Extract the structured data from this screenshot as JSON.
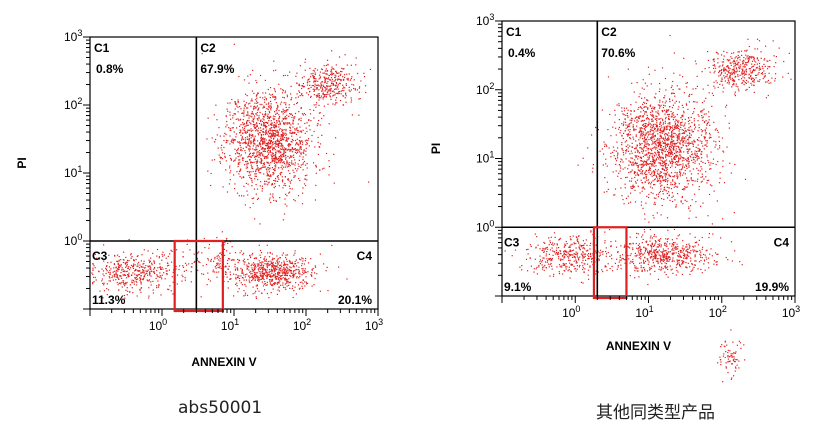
{
  "captions": [
    "abs50001",
    "其他同类型产品"
  ],
  "chart_data": [
    {
      "type": "scatter",
      "title": "",
      "xlabel": "ANNEXIN V",
      "ylabel": "PI",
      "xscale": "log",
      "yscale": "log",
      "xlim": [
        0.1,
        1000
      ],
      "ylim": [
        0.1,
        1000
      ],
      "x_ticks": [
        "10^0",
        "10^1",
        "10^2",
        "10^3"
      ],
      "y_ticks": [
        "10^0",
        "10^1",
        "10^2",
        "10^3"
      ],
      "point_color": "#e02020",
      "gate_x": 3,
      "gate_y": 1,
      "quadrants": [
        {
          "label": "C1",
          "percent": "0.8%"
        },
        {
          "label": "C2",
          "percent": "67.9%"
        },
        {
          "label": "C3",
          "percent": "11.3%"
        },
        {
          "label": "C4",
          "percent": "20.1%"
        }
      ],
      "highlight_box": {
        "x_range": [
          1.5,
          7
        ],
        "y_range": [
          0.1,
          1.0
        ],
        "color": "#e02020"
      },
      "clusters": [
        {
          "cx": 30,
          "cy": 30,
          "n": 1500,
          "sx": 0.3,
          "sy": 0.38
        },
        {
          "cx": 200,
          "cy": 200,
          "n": 350,
          "sx": 0.22,
          "sy": 0.15
        },
        {
          "cx": 35,
          "cy": 0.35,
          "n": 620,
          "sx": 0.28,
          "sy": 0.14
        },
        {
          "cx": 0.4,
          "cy": 0.35,
          "n": 420,
          "sx": 0.3,
          "sy": 0.14
        },
        {
          "cx": 5,
          "cy": 0.5,
          "n": 160,
          "sx": 0.3,
          "sy": 0.2
        }
      ]
    },
    {
      "type": "scatter",
      "title": "",
      "xlabel": "ANNEXIN V",
      "ylabel": "PI",
      "xscale": "log",
      "yscale": "log",
      "xlim": [
        0.1,
        1000
      ],
      "ylim": [
        0.1,
        1000
      ],
      "x_ticks": [
        "10^0",
        "10^1",
        "10^2",
        "10^3"
      ],
      "y_ticks": [
        "10^0",
        "10^1",
        "10^2",
        "10^3"
      ],
      "point_color": "#e02020",
      "gate_x": 2,
      "gate_y": 1,
      "quadrants": [
        {
          "label": "C1",
          "percent": "0.4%"
        },
        {
          "label": "C2",
          "percent": "70.6%"
        },
        {
          "label": "C3",
          "percent": "9.1%"
        },
        {
          "label": "C4",
          "percent": "19.9%"
        }
      ],
      "highlight_box": {
        "x_range": [
          1.8,
          5
        ],
        "y_range": [
          0.1,
          1.0
        ],
        "color": "#e02020"
      },
      "clusters": [
        {
          "cx": 15,
          "cy": 15,
          "n": 1700,
          "sx": 0.35,
          "sy": 0.4
        },
        {
          "cx": 180,
          "cy": 200,
          "n": 380,
          "sx": 0.25,
          "sy": 0.15
        },
        {
          "cx": 15,
          "cy": 0.4,
          "n": 560,
          "sx": 0.35,
          "sy": 0.14
        },
        {
          "cx": 0.8,
          "cy": 0.4,
          "n": 380,
          "sx": 0.3,
          "sy": 0.14
        },
        {
          "cx": 130,
          "cy": 0.013,
          "n": 70,
          "sx": 0.08,
          "sy": 0.12
        }
      ]
    }
  ]
}
